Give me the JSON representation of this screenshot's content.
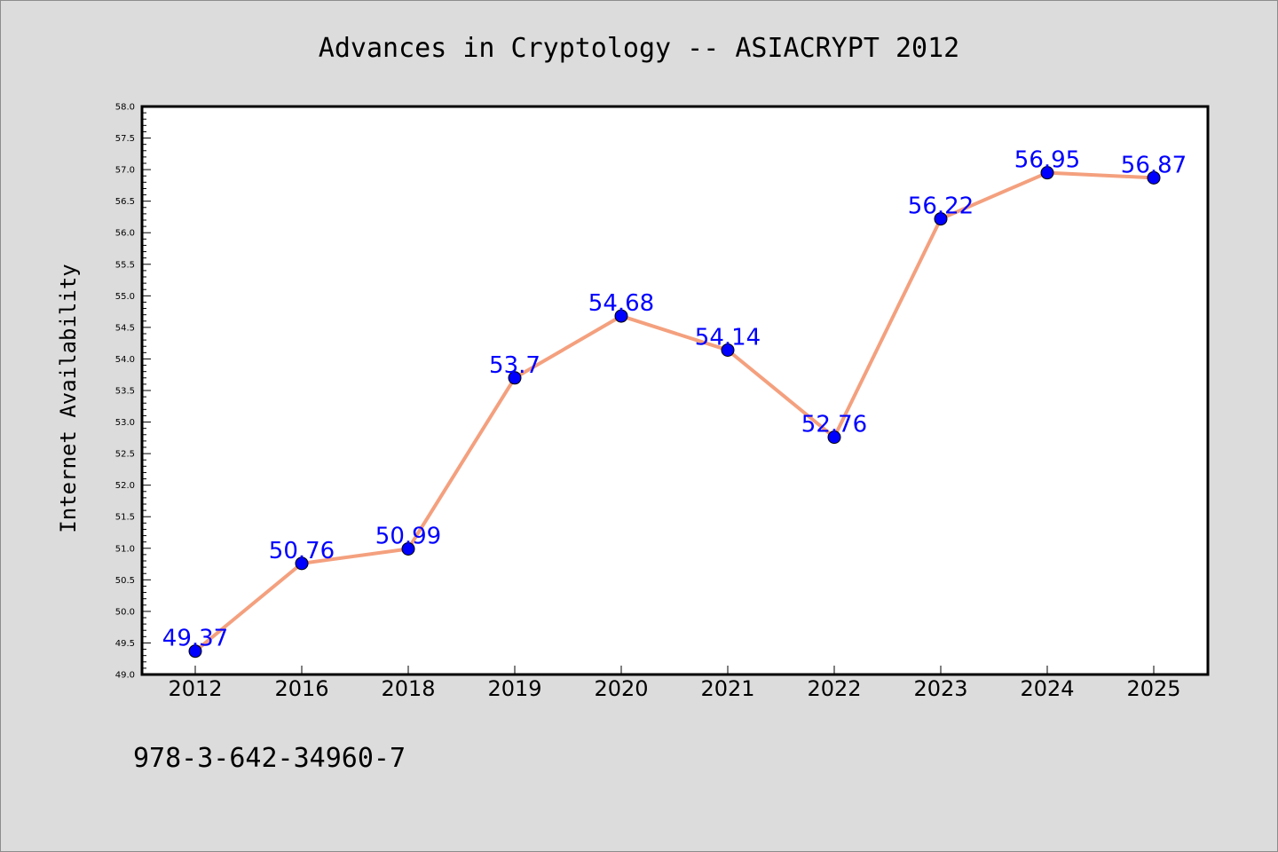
{
  "chart_data": {
    "type": "line",
    "title": "Advances in Cryptology -- ASIACRYPT 2012",
    "ylabel": "Internet Availability",
    "xlabel": "",
    "categories": [
      "2012",
      "2016",
      "2018",
      "2019",
      "2020",
      "2021",
      "2022",
      "2023",
      "2024",
      "2025"
    ],
    "series": [
      {
        "values": [
          49.37,
          50.76,
          50.99,
          53.7,
          54.68,
          54.14,
          52.76,
          56.22,
          56.95,
          56.87
        ],
        "labels": [
          "49.37",
          "50.76",
          "50.99",
          "53.7",
          "54.68",
          "54.14",
          "52.76",
          "56.22",
          "56.95",
          "56.87"
        ],
        "line_color": "#f4a07e",
        "marker_color": "#0000ff",
        "label_color": "#0000ff"
      }
    ],
    "ylim": [
      49.0,
      58.0
    ],
    "yticks": [
      "49.0",
      "49.5",
      "50.0",
      "50.5",
      "51.0",
      "51.5",
      "52.0",
      "52.5",
      "53.0",
      "53.5",
      "54.0",
      "54.5",
      "55.0",
      "55.5",
      "56.0",
      "56.5",
      "57.0",
      "57.5",
      "58.0"
    ],
    "grid": false,
    "legend": "none",
    "background_color": "#dcdcdc",
    "plot_background_color": "#ffffff"
  },
  "footer": {
    "isbn": "978-3-642-34960-7"
  }
}
